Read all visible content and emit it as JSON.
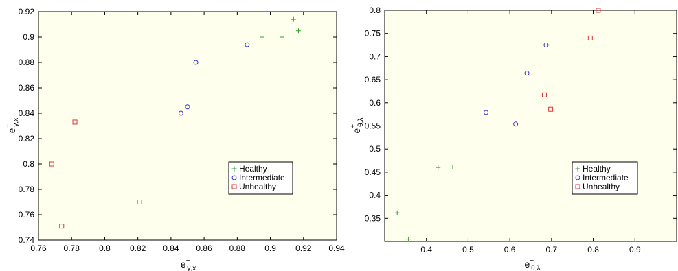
{
  "chart_data": [
    {
      "type": "scatter",
      "xlabel": {
        "base": "e",
        "sup": "−",
        "sub": "γ,x"
      },
      "ylabel": {
        "base": "e",
        "sup": "+",
        "sub": "γ,x"
      },
      "xlim": [
        0.76,
        0.94
      ],
      "ylim": [
        0.74,
        0.92
      ],
      "xticks": [
        0.76,
        0.78,
        0.8,
        0.82,
        0.84,
        0.86,
        0.88,
        0.9,
        0.92,
        0.94
      ],
      "yticks": [
        0.74,
        0.76,
        0.78,
        0.8,
        0.82,
        0.84,
        0.86,
        0.88,
        0.9,
        0.92
      ],
      "xtick_labels": [
        "0.76",
        "0.78",
        "0.8",
        "0.82",
        "0.84",
        "0.86",
        "0.88",
        "0.9",
        "0.92",
        "0.94"
      ],
      "ytick_labels": [
        "0.74",
        "0.76",
        "0.78",
        "0.8",
        "0.82",
        "0.84",
        "0.86",
        "0.88",
        "0.9",
        "0.92"
      ],
      "background": "#ffffee",
      "legend": "lower-right",
      "series": [
        {
          "name": "Healthy",
          "marker": "plus",
          "color": "#2e9e2e",
          "points": [
            [
              0.895,
              0.9
            ],
            [
              0.907,
              0.9
            ],
            [
              0.914,
              0.914
            ],
            [
              0.917,
              0.905
            ]
          ]
        },
        {
          "name": "Intermediate",
          "marker": "circle",
          "color": "#3333cc",
          "points": [
            [
              0.846,
              0.84
            ],
            [
              0.85,
              0.845
            ],
            [
              0.855,
              0.88
            ],
            [
              0.886,
              0.894
            ]
          ]
        },
        {
          "name": "Unhealthy",
          "marker": "square",
          "color": "#dd3333",
          "points": [
            [
              0.768,
              0.8
            ],
            [
              0.774,
              0.751
            ],
            [
              0.782,
              0.833
            ],
            [
              0.821,
              0.77
            ]
          ]
        }
      ]
    },
    {
      "type": "scatter",
      "xlabel": {
        "base": "e",
        "sup": "−",
        "sub": "θ,λ"
      },
      "ylabel": {
        "base": "e",
        "sup": "+",
        "sub": "θ,λ"
      },
      "xlim": [
        0.3,
        1.0
      ],
      "ylim": [
        0.3,
        0.8
      ],
      "xticks": [
        0.4,
        0.5,
        0.6,
        0.7,
        0.8,
        0.9
      ],
      "yticks": [
        0.35,
        0.4,
        0.45,
        0.5,
        0.55,
        0.6,
        0.65,
        0.7,
        0.75,
        0.8
      ],
      "xtick_labels": [
        "0.4",
        "0.5",
        "0.6",
        "0.7",
        "0.8",
        "0.9"
      ],
      "ytick_labels": [
        "0.35",
        "0.4",
        "0.45",
        "0.5",
        "0.55",
        "0.6",
        "0.65",
        "0.7",
        "0.75",
        "0.8"
      ],
      "background": "#ffffee",
      "legend": "lower-right",
      "series": [
        {
          "name": "Healthy",
          "marker": "plus",
          "color": "#2e9e2e",
          "points": [
            [
              0.33,
              0.362
            ],
            [
              0.357,
              0.305
            ],
            [
              0.428,
              0.46
            ],
            [
              0.463,
              0.461
            ]
          ]
        },
        {
          "name": "Intermediate",
          "marker": "circle",
          "color": "#3333cc",
          "points": [
            [
              0.543,
              0.579
            ],
            [
              0.614,
              0.554
            ],
            [
              0.641,
              0.664
            ],
            [
              0.687,
              0.725
            ]
          ]
        },
        {
          "name": "Unhealthy",
          "marker": "square",
          "color": "#dd3333",
          "points": [
            [
              0.683,
              0.617
            ],
            [
              0.698,
              0.586
            ],
            [
              0.793,
              0.74
            ],
            [
              0.812,
              0.8
            ]
          ]
        }
      ]
    }
  ]
}
